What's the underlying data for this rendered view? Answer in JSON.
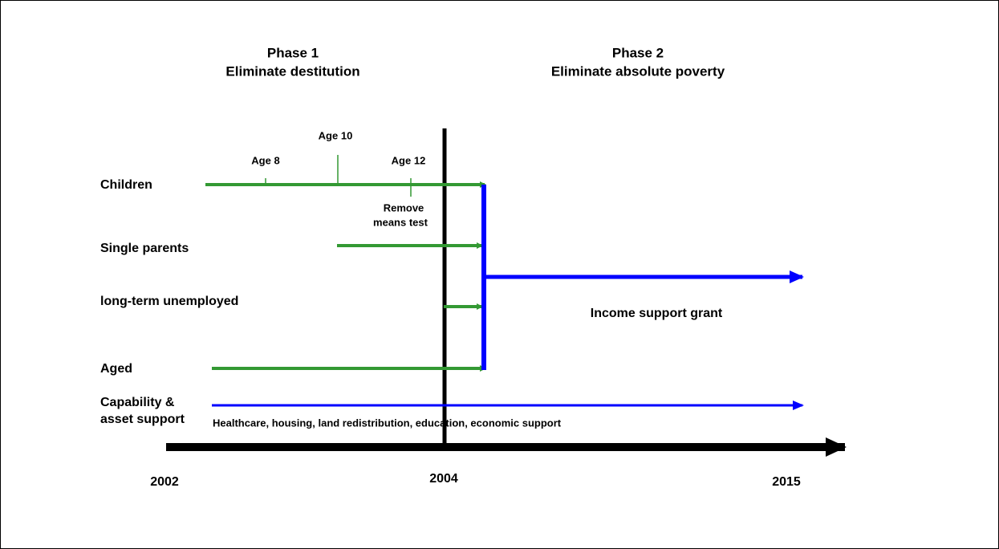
{
  "phases": [
    {
      "number": "Phase 1",
      "goal": "Eliminate destitution"
    },
    {
      "number": "Phase 2",
      "goal": "Eliminate absolute poverty"
    }
  ],
  "rows": [
    {
      "label": "Children"
    },
    {
      "label": "Single parents"
    },
    {
      "label": "long-term unemployed"
    },
    {
      "label": "Aged"
    },
    {
      "label": [
        "Capability &",
        "asset support"
      ]
    }
  ],
  "age_markers": [
    "Age 8",
    "Age 10",
    "Age 12"
  ],
  "annotations": {
    "means_test": [
      "Remove",
      "means test"
    ],
    "income_support": "Income support grant",
    "capability_support": "Healthcare, housing, land redistribution, education, economic support"
  },
  "years": [
    "2002",
    "2004",
    "2015"
  ]
}
